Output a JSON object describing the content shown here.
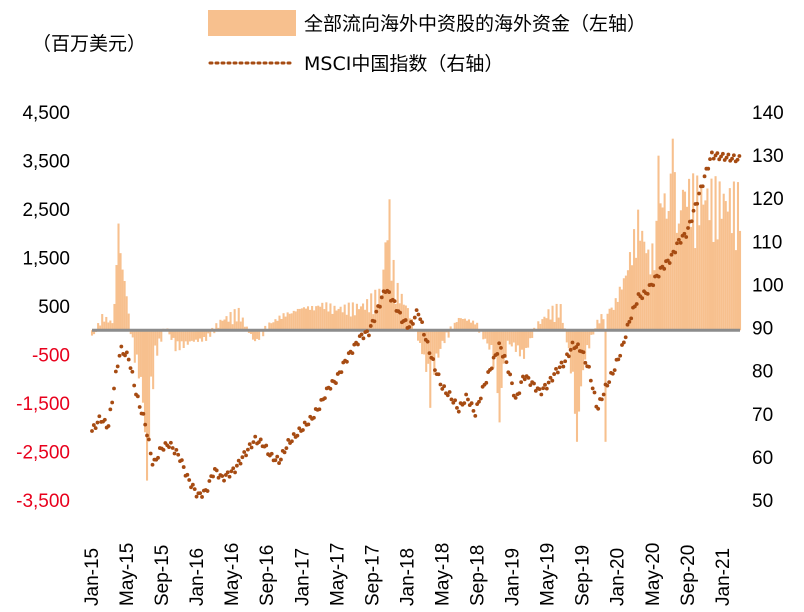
{
  "chart_data": {
    "type": "bar+line",
    "legend": {
      "bar_label": "全部流向海外中资股的海外资金（左轴）",
      "line_label": "MSCI中国指数（右轴）"
    },
    "y_left_unit": "（百万美元）",
    "y_left": {
      "min": -3500,
      "max": 4500,
      "ticks": [
        4500,
        3500,
        2500,
        1500,
        500,
        -500,
        -1500,
        -2500,
        -3500
      ],
      "tick_labels": [
        "4,500",
        "3,500",
        "2,500",
        "1,500",
        "500",
        "-500",
        "-1,500",
        "-2,500",
        "-3,500"
      ],
      "positive_color": "#000000",
      "negative_color": "#e8001c"
    },
    "y_right": {
      "min": 50,
      "max": 140,
      "ticks": [
        140,
        130,
        120,
        110,
        100,
        90,
        80,
        70,
        60,
        50
      ],
      "tick_labels": [
        "140",
        "130",
        "120",
        "110",
        "100",
        "90",
        "80",
        "70",
        "60",
        "50"
      ]
    },
    "x_labels": [
      "Jan-15",
      "May-15",
      "Sep-15",
      "Jan-16",
      "May-16",
      "Sep-16",
      "Jan-17",
      "May-17",
      "Sep-17",
      "Jan-18",
      "May-18",
      "Sep-18",
      "Jan-19",
      "May-19",
      "Sep-19",
      "Jan-20",
      "May-20",
      "Sep-20",
      "Jan-21"
    ],
    "bar_color": "#f7c08e",
    "line_color": "#a64b12",
    "zero_line_color": "#8c8c8c",
    "bar_series": {
      "name": "全部流向海外中资股的海外资金（左轴）",
      "period": "weekly, Jan-15 to Feb-21",
      "anchors": [
        {
          "w": 0,
          "v": -200
        },
        {
          "w": 5,
          "v": 300
        },
        {
          "w": 10,
          "v": 200
        },
        {
          "w": 13,
          "v": 2000
        },
        {
          "w": 16,
          "v": 1200
        },
        {
          "w": 20,
          "v": -400
        },
        {
          "w": 24,
          "v": -1200
        },
        {
          "w": 27,
          "v": -2800
        },
        {
          "w": 31,
          "v": -600
        },
        {
          "w": 36,
          "v": 100
        },
        {
          "w": 41,
          "v": -400
        },
        {
          "w": 48,
          "v": -300
        },
        {
          "w": 56,
          "v": -200
        },
        {
          "w": 64,
          "v": 250
        },
        {
          "w": 72,
          "v": 400
        },
        {
          "w": 80,
          "v": -300
        },
        {
          "w": 88,
          "v": 200
        },
        {
          "w": 100,
          "v": 500
        },
        {
          "w": 112,
          "v": 600
        },
        {
          "w": 124,
          "v": 500
        },
        {
          "w": 135,
          "v": 600
        },
        {
          "w": 142,
          "v": 900
        },
        {
          "w": 145,
          "v": 2500
        },
        {
          "w": 149,
          "v": 1000
        },
        {
          "w": 155,
          "v": 500
        },
        {
          "w": 162,
          "v": -500
        },
        {
          "w": 166,
          "v": -1200
        },
        {
          "w": 172,
          "v": -300
        },
        {
          "w": 180,
          "v": 300
        },
        {
          "w": 188,
          "v": 200
        },
        {
          "w": 196,
          "v": -500
        },
        {
          "w": 200,
          "v": -1500
        },
        {
          "w": 204,
          "v": -300
        },
        {
          "w": 212,
          "v": -600
        },
        {
          "w": 218,
          "v": 100
        },
        {
          "w": 224,
          "v": 400
        },
        {
          "w": 230,
          "v": 500
        },
        {
          "w": 234,
          "v": -500
        },
        {
          "w": 238,
          "v": -2200
        },
        {
          "w": 242,
          "v": -600
        },
        {
          "w": 248,
          "v": 200
        },
        {
          "w": 256,
          "v": 600
        },
        {
          "w": 262,
          "v": 1300
        },
        {
          "w": 268,
          "v": 2600
        },
        {
          "w": 274,
          "v": 1600
        },
        {
          "w": 281,
          "v": 3300
        },
        {
          "w": 318,
          "v": 3000
        }
      ],
      "spikes": [
        {
          "w": 13,
          "v": 2200
        },
        {
          "w": 27,
          "v": -3100
        },
        {
          "w": 146,
          "v": 2700
        },
        {
          "w": 166,
          "v": -1600
        },
        {
          "w": 200,
          "v": -1900
        },
        {
          "w": 238,
          "v": -2300
        },
        {
          "w": 252,
          "v": -2300
        },
        {
          "w": 278,
          "v": 3600
        },
        {
          "w": 282,
          "v": 2300
        },
        {
          "w": 285,
          "v": 3950
        },
        {
          "w": 288,
          "v": 2200
        }
      ]
    },
    "line_series": {
      "name": "MSCI中国指数（右轴）",
      "anchors": [
        {
          "w": 0,
          "v": 66
        },
        {
          "w": 4,
          "v": 69
        },
        {
          "w": 8,
          "v": 67
        },
        {
          "w": 12,
          "v": 80
        },
        {
          "w": 14,
          "v": 85
        },
        {
          "w": 18,
          "v": 83
        },
        {
          "w": 22,
          "v": 74
        },
        {
          "w": 26,
          "v": 68
        },
        {
          "w": 30,
          "v": 58
        },
        {
          "w": 34,
          "v": 62
        },
        {
          "w": 38,
          "v": 63
        },
        {
          "w": 43,
          "v": 60
        },
        {
          "w": 47,
          "v": 55
        },
        {
          "w": 52,
          "v": 51
        },
        {
          "w": 56,
          "v": 52
        },
        {
          "w": 60,
          "v": 57
        },
        {
          "w": 64,
          "v": 55
        },
        {
          "w": 70,
          "v": 57
        },
        {
          "w": 74,
          "v": 60
        },
        {
          "w": 80,
          "v": 64
        },
        {
          "w": 84,
          "v": 63
        },
        {
          "w": 88,
          "v": 60
        },
        {
          "w": 92,
          "v": 59
        },
        {
          "w": 96,
          "v": 63
        },
        {
          "w": 100,
          "v": 65
        },
        {
          "w": 104,
          "v": 67
        },
        {
          "w": 108,
          "v": 69
        },
        {
          "w": 112,
          "v": 72
        },
        {
          "w": 116,
          "v": 76
        },
        {
          "w": 120,
          "v": 78
        },
        {
          "w": 124,
          "v": 82
        },
        {
          "w": 128,
          "v": 85
        },
        {
          "w": 132,
          "v": 88
        },
        {
          "w": 136,
          "v": 89
        },
        {
          "w": 140,
          "v": 94
        },
        {
          "w": 144,
          "v": 99
        },
        {
          "w": 148,
          "v": 96
        },
        {
          "w": 152,
          "v": 92
        },
        {
          "w": 156,
          "v": 90
        },
        {
          "w": 160,
          "v": 94
        },
        {
          "w": 164,
          "v": 87
        },
        {
          "w": 168,
          "v": 81
        },
        {
          "w": 172,
          "v": 76
        },
        {
          "w": 176,
          "v": 74
        },
        {
          "w": 180,
          "v": 71
        },
        {
          "w": 184,
          "v": 74
        },
        {
          "w": 188,
          "v": 70
        },
        {
          "w": 192,
          "v": 76
        },
        {
          "w": 196,
          "v": 81
        },
        {
          "w": 200,
          "v": 86
        },
        {
          "w": 204,
          "v": 81
        },
        {
          "w": 208,
          "v": 73
        },
        {
          "w": 212,
          "v": 79
        },
        {
          "w": 216,
          "v": 77
        },
        {
          "w": 220,
          "v": 75
        },
        {
          "w": 224,
          "v": 77
        },
        {
          "w": 228,
          "v": 80
        },
        {
          "w": 232,
          "v": 82
        },
        {
          "w": 236,
          "v": 86
        },
        {
          "w": 240,
          "v": 85
        },
        {
          "w": 244,
          "v": 80
        },
        {
          "w": 248,
          "v": 71
        },
        {
          "w": 252,
          "v": 76
        },
        {
          "w": 256,
          "v": 80
        },
        {
          "w": 260,
          "v": 85
        },
        {
          "w": 264,
          "v": 92
        },
        {
          "w": 268,
          "v": 97
        },
        {
          "w": 272,
          "v": 98
        },
        {
          "w": 276,
          "v": 101
        },
        {
          "w": 280,
          "v": 104
        },
        {
          "w": 284,
          "v": 106
        },
        {
          "w": 288,
          "v": 110
        },
        {
          "w": 292,
          "v": 112
        },
        {
          "w": 296,
          "v": 118
        },
        {
          "w": 300,
          "v": 124
        },
        {
          "w": 304,
          "v": 130
        },
        {
          "w": 318,
          "v": 129
        }
      ]
    }
  }
}
